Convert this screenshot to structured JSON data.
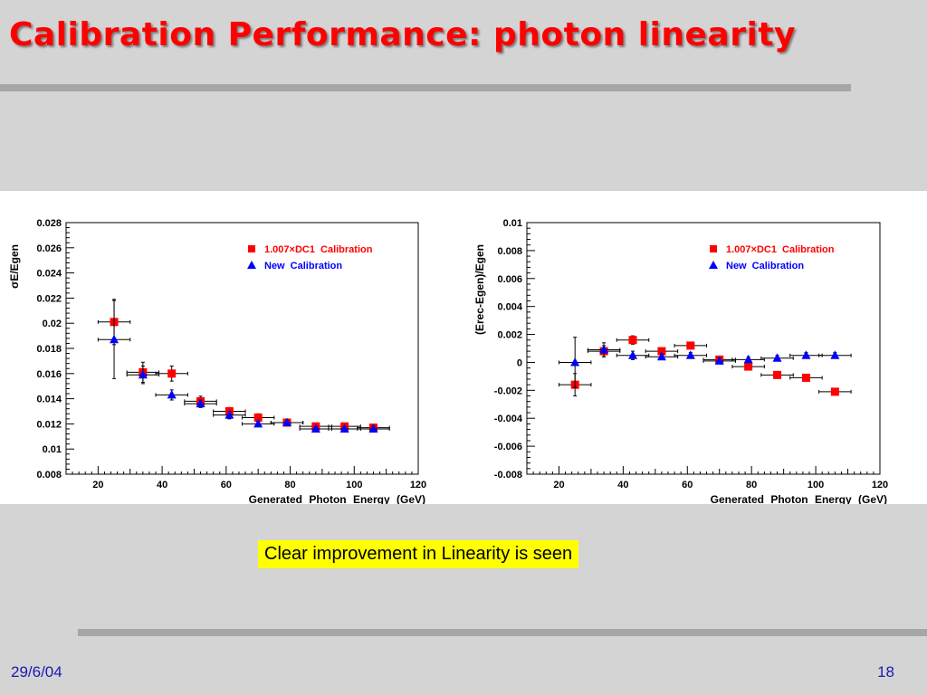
{
  "slide": {
    "title": "Calibration Performance: photon linearity",
    "callout": "Clear improvement in Linearity is seen",
    "date": "29/6/04",
    "page_number": "18"
  },
  "colors": {
    "title": "#ff0000",
    "series_dc1": "#ff0000",
    "series_new": "#0000ff",
    "callout_bg": "#ffff00",
    "footer": "#1a1ab4",
    "rule": "#a6a6a6"
  },
  "chart_data": [
    {
      "type": "scatter",
      "ylabel": "σE/Egen",
      "xlabel": "Generated Photon Energy (GeV)",
      "xlim": [
        10,
        120
      ],
      "ylim": [
        0.008,
        0.028
      ],
      "x_ticks": [
        "20",
        "40",
        "60",
        "80",
        "100",
        "120"
      ],
      "y_ticks": [
        "0.008",
        "0.01",
        "0.012",
        "0.014",
        "0.016",
        "0.018",
        "0.02",
        "0.022",
        "0.024",
        "0.026",
        "0.028"
      ],
      "grid": false,
      "legend_position": "top-right",
      "series": [
        {
          "name": "1.007×DC1 Calibration",
          "marker": "square",
          "color": "#ff0000",
          "points": [
            {
              "x": 25,
              "y": 0.0201,
              "xerr": 5,
              "yerr": 0.0018
            },
            {
              "x": 34,
              "y": 0.0161,
              "xerr": 5,
              "yerr": 0.0008
            },
            {
              "x": 43,
              "y": 0.016,
              "xerr": 5,
              "yerr": 0.0006
            },
            {
              "x": 52,
              "y": 0.0138,
              "xerr": 5,
              "yerr": 0.0004
            },
            {
              "x": 61,
              "y": 0.013,
              "xerr": 5,
              "yerr": 0.0003
            },
            {
              "x": 70,
              "y": 0.0125,
              "xerr": 5,
              "yerr": 0.0003
            },
            {
              "x": 79,
              "y": 0.0121,
              "xerr": 5,
              "yerr": 0.0002
            },
            {
              "x": 88,
              "y": 0.0118,
              "xerr": 5,
              "yerr": 0.0002
            },
            {
              "x": 97,
              "y": 0.0118,
              "xerr": 5,
              "yerr": 0.0002
            },
            {
              "x": 106,
              "y": 0.0117,
              "xerr": 5,
              "yerr": 0.0002
            }
          ]
        },
        {
          "name": "New Calibration",
          "marker": "triangle",
          "color": "#0000ff",
          "points": [
            {
              "x": 25,
              "y": 0.0187,
              "xerr": 5,
              "yerr": 0.0031
            },
            {
              "x": 34,
              "y": 0.0159,
              "xerr": 5,
              "yerr": 0.0007
            },
            {
              "x": 43,
              "y": 0.0143,
              "xerr": 5,
              "yerr": 0.0004
            },
            {
              "x": 52,
              "y": 0.0136,
              "xerr": 5,
              "yerr": 0.0003
            },
            {
              "x": 61,
              "y": 0.0127,
              "xerr": 5,
              "yerr": 0.0003
            },
            {
              "x": 70,
              "y": 0.012,
              "xerr": 5,
              "yerr": 0.0002
            },
            {
              "x": 79,
              "y": 0.0121,
              "xerr": 5,
              "yerr": 0.0002
            },
            {
              "x": 88,
              "y": 0.0116,
              "xerr": 5,
              "yerr": 0.0002
            },
            {
              "x": 97,
              "y": 0.0116,
              "xerr": 5,
              "yerr": 0.0002
            },
            {
              "x": 106,
              "y": 0.0116,
              "xerr": 5,
              "yerr": 0.0002
            }
          ]
        }
      ]
    },
    {
      "type": "scatter",
      "ylabel": "(Erec-Egen)/Egen",
      "xlabel": "Generated Photon Energy (GeV)",
      "xlim": [
        10,
        120
      ],
      "ylim": [
        -0.008,
        0.01
      ],
      "x_ticks": [
        "20",
        "40",
        "60",
        "80",
        "100",
        "120"
      ],
      "y_ticks": [
        "-0.008",
        "-0.006",
        "-0.004",
        "-0.002",
        "0",
        "0.002",
        "0.004",
        "0.006",
        "0.008",
        "0.01"
      ],
      "grid": false,
      "legend_position": "top-right",
      "series": [
        {
          "name": "1.007×DC1 Calibration",
          "marker": "square",
          "color": "#ff0000",
          "points": [
            {
              "x": 25,
              "y": -0.0016,
              "xerr": 5,
              "yerr": 0.0008
            },
            {
              "x": 34,
              "y": 0.0008,
              "xerr": 5,
              "yerr": 0.0004
            },
            {
              "x": 43,
              "y": 0.0016,
              "xerr": 5,
              "yerr": 0.0003
            },
            {
              "x": 52,
              "y": 0.0008,
              "xerr": 5,
              "yerr": 0.0002
            },
            {
              "x": 61,
              "y": 0.0012,
              "xerr": 5,
              "yerr": 0.0002
            },
            {
              "x": 70,
              "y": 0.0002,
              "xerr": 5,
              "yerr": 0.0002
            },
            {
              "x": 79,
              "y": -0.0003,
              "xerr": 5,
              "yerr": 0.0002
            },
            {
              "x": 88,
              "y": -0.0009,
              "xerr": 5,
              "yerr": 0.0002
            },
            {
              "x": 97,
              "y": -0.0011,
              "xerr": 5,
              "yerr": 0.0002
            },
            {
              "x": 106,
              "y": -0.0021,
              "xerr": 5,
              "yerr": 0.0002
            }
          ]
        },
        {
          "name": "New Calibration",
          "marker": "triangle",
          "color": "#0000ff",
          "points": [
            {
              "x": 25,
              "y": 0.0,
              "xerr": 5,
              "yerr": 0.0018
            },
            {
              "x": 34,
              "y": 0.0009,
              "xerr": 5,
              "yerr": 0.0005
            },
            {
              "x": 43,
              "y": 0.0005,
              "xerr": 5,
              "yerr": 0.0003
            },
            {
              "x": 52,
              "y": 0.0004,
              "xerr": 5,
              "yerr": 0.0002
            },
            {
              "x": 61,
              "y": 0.0005,
              "xerr": 5,
              "yerr": 0.0002
            },
            {
              "x": 70,
              "y": 0.0001,
              "xerr": 5,
              "yerr": 0.0002
            },
            {
              "x": 79,
              "y": 0.0002,
              "xerr": 5,
              "yerr": 0.0002
            },
            {
              "x": 88,
              "y": 0.0003,
              "xerr": 5,
              "yerr": 0.0002
            },
            {
              "x": 97,
              "y": 0.0005,
              "xerr": 5,
              "yerr": 0.0002
            },
            {
              "x": 106,
              "y": 0.0005,
              "xerr": 5,
              "yerr": 0.0002
            }
          ]
        }
      ]
    }
  ]
}
